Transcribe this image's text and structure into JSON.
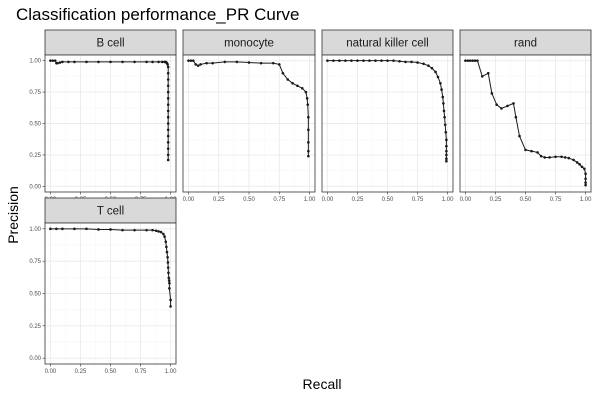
{
  "chart_data": {
    "type": "line",
    "title": "Classification performance_PR Curve",
    "xlabel": "Recall",
    "ylabel": "Precision",
    "xlim": [
      0,
      1
    ],
    "ylim": [
      0,
      1
    ],
    "x_ticks": [
      "0.00",
      "0.25",
      "0.50",
      "0.75",
      "1.00"
    ],
    "y_ticks": [
      "0.00",
      "0.25",
      "0.50",
      "0.75",
      "1.00"
    ],
    "grid": true,
    "legend": "none",
    "colors": {
      "line": "#1a1a1a",
      "strip_fill": "#d9d9d9",
      "panel_border": "#333333",
      "grid_major": "#ebebeb",
      "grid_minor": "#f5f5f5"
    },
    "facets": [
      {
        "name": "B cell",
        "x": [
          0.0,
          0.02,
          0.04,
          0.05,
          0.06,
          0.08,
          0.1,
          0.15,
          0.2,
          0.3,
          0.4,
          0.5,
          0.6,
          0.7,
          0.8,
          0.85,
          0.9,
          0.93,
          0.95,
          0.96,
          0.965,
          0.97,
          0.975,
          0.98,
          0.98,
          0.98,
          0.98,
          0.98,
          0.98,
          0.98,
          0.98,
          0.98,
          0.98,
          0.98,
          0.98,
          0.98,
          0.98,
          0.98,
          0.98
        ],
        "y": [
          1.0,
          1.0,
          1.0,
          0.98,
          0.98,
          0.985,
          0.99,
          0.99,
          0.99,
          0.99,
          0.99,
          0.99,
          0.99,
          0.99,
          0.99,
          0.99,
          0.99,
          0.99,
          0.99,
          0.99,
          0.985,
          0.98,
          0.97,
          0.95,
          0.9,
          0.85,
          0.8,
          0.75,
          0.7,
          0.65,
          0.6,
          0.55,
          0.5,
          0.45,
          0.4,
          0.35,
          0.3,
          0.25,
          0.21
        ]
      },
      {
        "name": "monocyte",
        "x": [
          0.0,
          0.02,
          0.04,
          0.06,
          0.08,
          0.1,
          0.15,
          0.2,
          0.3,
          0.4,
          0.5,
          0.6,
          0.7,
          0.75,
          0.78,
          0.82,
          0.86,
          0.9,
          0.94,
          0.97,
          0.98,
          0.985,
          0.99,
          0.99,
          0.99,
          0.99,
          0.99
        ],
        "y": [
          1.0,
          1.0,
          1.0,
          0.97,
          0.96,
          0.97,
          0.98,
          0.98,
          0.99,
          0.99,
          0.985,
          0.98,
          0.98,
          0.97,
          0.9,
          0.85,
          0.82,
          0.8,
          0.78,
          0.75,
          0.7,
          0.65,
          0.55,
          0.45,
          0.35,
          0.28,
          0.24
        ]
      },
      {
        "name": "natural killer cell",
        "x": [
          0.0,
          0.05,
          0.1,
          0.15,
          0.2,
          0.25,
          0.3,
          0.35,
          0.4,
          0.45,
          0.5,
          0.55,
          0.6,
          0.65,
          0.7,
          0.75,
          0.8,
          0.84,
          0.87,
          0.9,
          0.92,
          0.94,
          0.95,
          0.96,
          0.965,
          0.97,
          0.975,
          0.98,
          0.985,
          0.99,
          0.99,
          0.99,
          0.99,
          0.99,
          0.99
        ],
        "y": [
          1.0,
          1.0,
          1.0,
          1.0,
          1.0,
          1.0,
          1.0,
          1.0,
          1.0,
          1.0,
          1.0,
          1.0,
          0.995,
          0.99,
          0.99,
          0.985,
          0.975,
          0.96,
          0.94,
          0.91,
          0.87,
          0.82,
          0.77,
          0.71,
          0.66,
          0.6,
          0.55,
          0.49,
          0.43,
          0.37,
          0.32,
          0.28,
          0.25,
          0.22,
          0.2
        ]
      },
      {
        "name": "rand",
        "x": [
          0.0,
          0.02,
          0.04,
          0.06,
          0.08,
          0.1,
          0.14,
          0.19,
          0.22,
          0.26,
          0.3,
          0.35,
          0.4,
          0.42,
          0.45,
          0.5,
          0.55,
          0.6,
          0.63,
          0.66,
          0.7,
          0.75,
          0.8,
          0.83,
          0.86,
          0.9,
          0.93,
          0.95,
          0.97,
          0.99,
          1.0,
          1.0,
          1.0,
          1.0
        ],
        "y": [
          1.0,
          1.0,
          1.0,
          1.0,
          1.0,
          1.0,
          0.875,
          0.9,
          0.74,
          0.65,
          0.62,
          0.64,
          0.66,
          0.55,
          0.4,
          0.29,
          0.28,
          0.27,
          0.24,
          0.23,
          0.23,
          0.235,
          0.235,
          0.23,
          0.225,
          0.21,
          0.19,
          0.175,
          0.155,
          0.14,
          0.1,
          0.06,
          0.03,
          0.01
        ]
      },
      {
        "name": "T cell",
        "x": [
          0.0,
          0.05,
          0.1,
          0.2,
          0.3,
          0.4,
          0.5,
          0.6,
          0.7,
          0.8,
          0.85,
          0.88,
          0.9,
          0.92,
          0.94,
          0.95,
          0.96,
          0.965,
          0.97,
          0.975,
          0.978,
          0.98,
          0.982,
          0.985,
          0.988,
          0.99,
          0.99,
          1.0,
          1.0
        ],
        "y": [
          1.0,
          1.0,
          1.0,
          1.0,
          1.0,
          0.995,
          0.995,
          0.99,
          0.99,
          0.99,
          0.99,
          0.985,
          0.98,
          0.975,
          0.96,
          0.94,
          0.9,
          0.86,
          0.82,
          0.78,
          0.74,
          0.7,
          0.66,
          0.62,
          0.6,
          0.58,
          0.54,
          0.45,
          0.4
        ]
      }
    ]
  }
}
